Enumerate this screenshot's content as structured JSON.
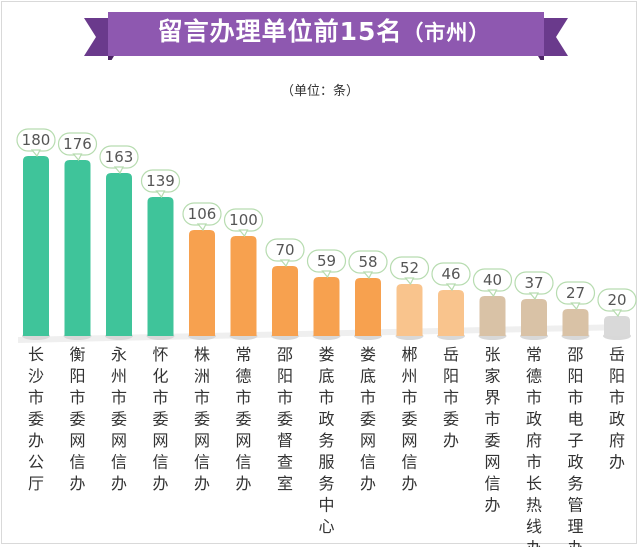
{
  "header": {
    "title": "留言办理单位前15名",
    "title_suffix": "（市州）",
    "unit_note": "（单位：条）"
  },
  "colors": {
    "banner": "#8e58b0",
    "banner_dark": "#6a3a8c",
    "green": "#3fc49a",
    "orange": "#f7a14f",
    "light_orange": "#f9c48d",
    "tan": "#d9c2a6",
    "grey": "#d9d9d9",
    "bubble_border": "#b7dcb0"
  },
  "chart_data": {
    "type": "bar",
    "title": "留言办理单位前15名（市州）",
    "unit": "（单位：条）",
    "categories": [
      "长沙市委办公厅",
      "衡阳市委网信办",
      "永州市委网信办",
      "怀化市委网信办",
      "株洲市委网信办",
      "常德市委网信办",
      "邵阳市委督查室",
      "娄底市政务服务中心",
      "娄底市委网信办",
      "郴州市委网信办",
      "岳阳市委办",
      "张家界市委网信办",
      "常德市政府市长热线办",
      "邵阳市电子政务管理办",
      "岳阳市政府办"
    ],
    "values": [
      180,
      176,
      163,
      139,
      106,
      100,
      70,
      59,
      58,
      52,
      46,
      40,
      37,
      27,
      20
    ],
    "bar_colors": [
      "green",
      "green",
      "green",
      "green",
      "orange",
      "orange",
      "orange",
      "orange",
      "orange",
      "light_orange",
      "light_orange",
      "tan",
      "tan",
      "tan",
      "grey"
    ],
    "ylim": [
      0,
      180
    ],
    "grid": false,
    "legend": "none"
  }
}
